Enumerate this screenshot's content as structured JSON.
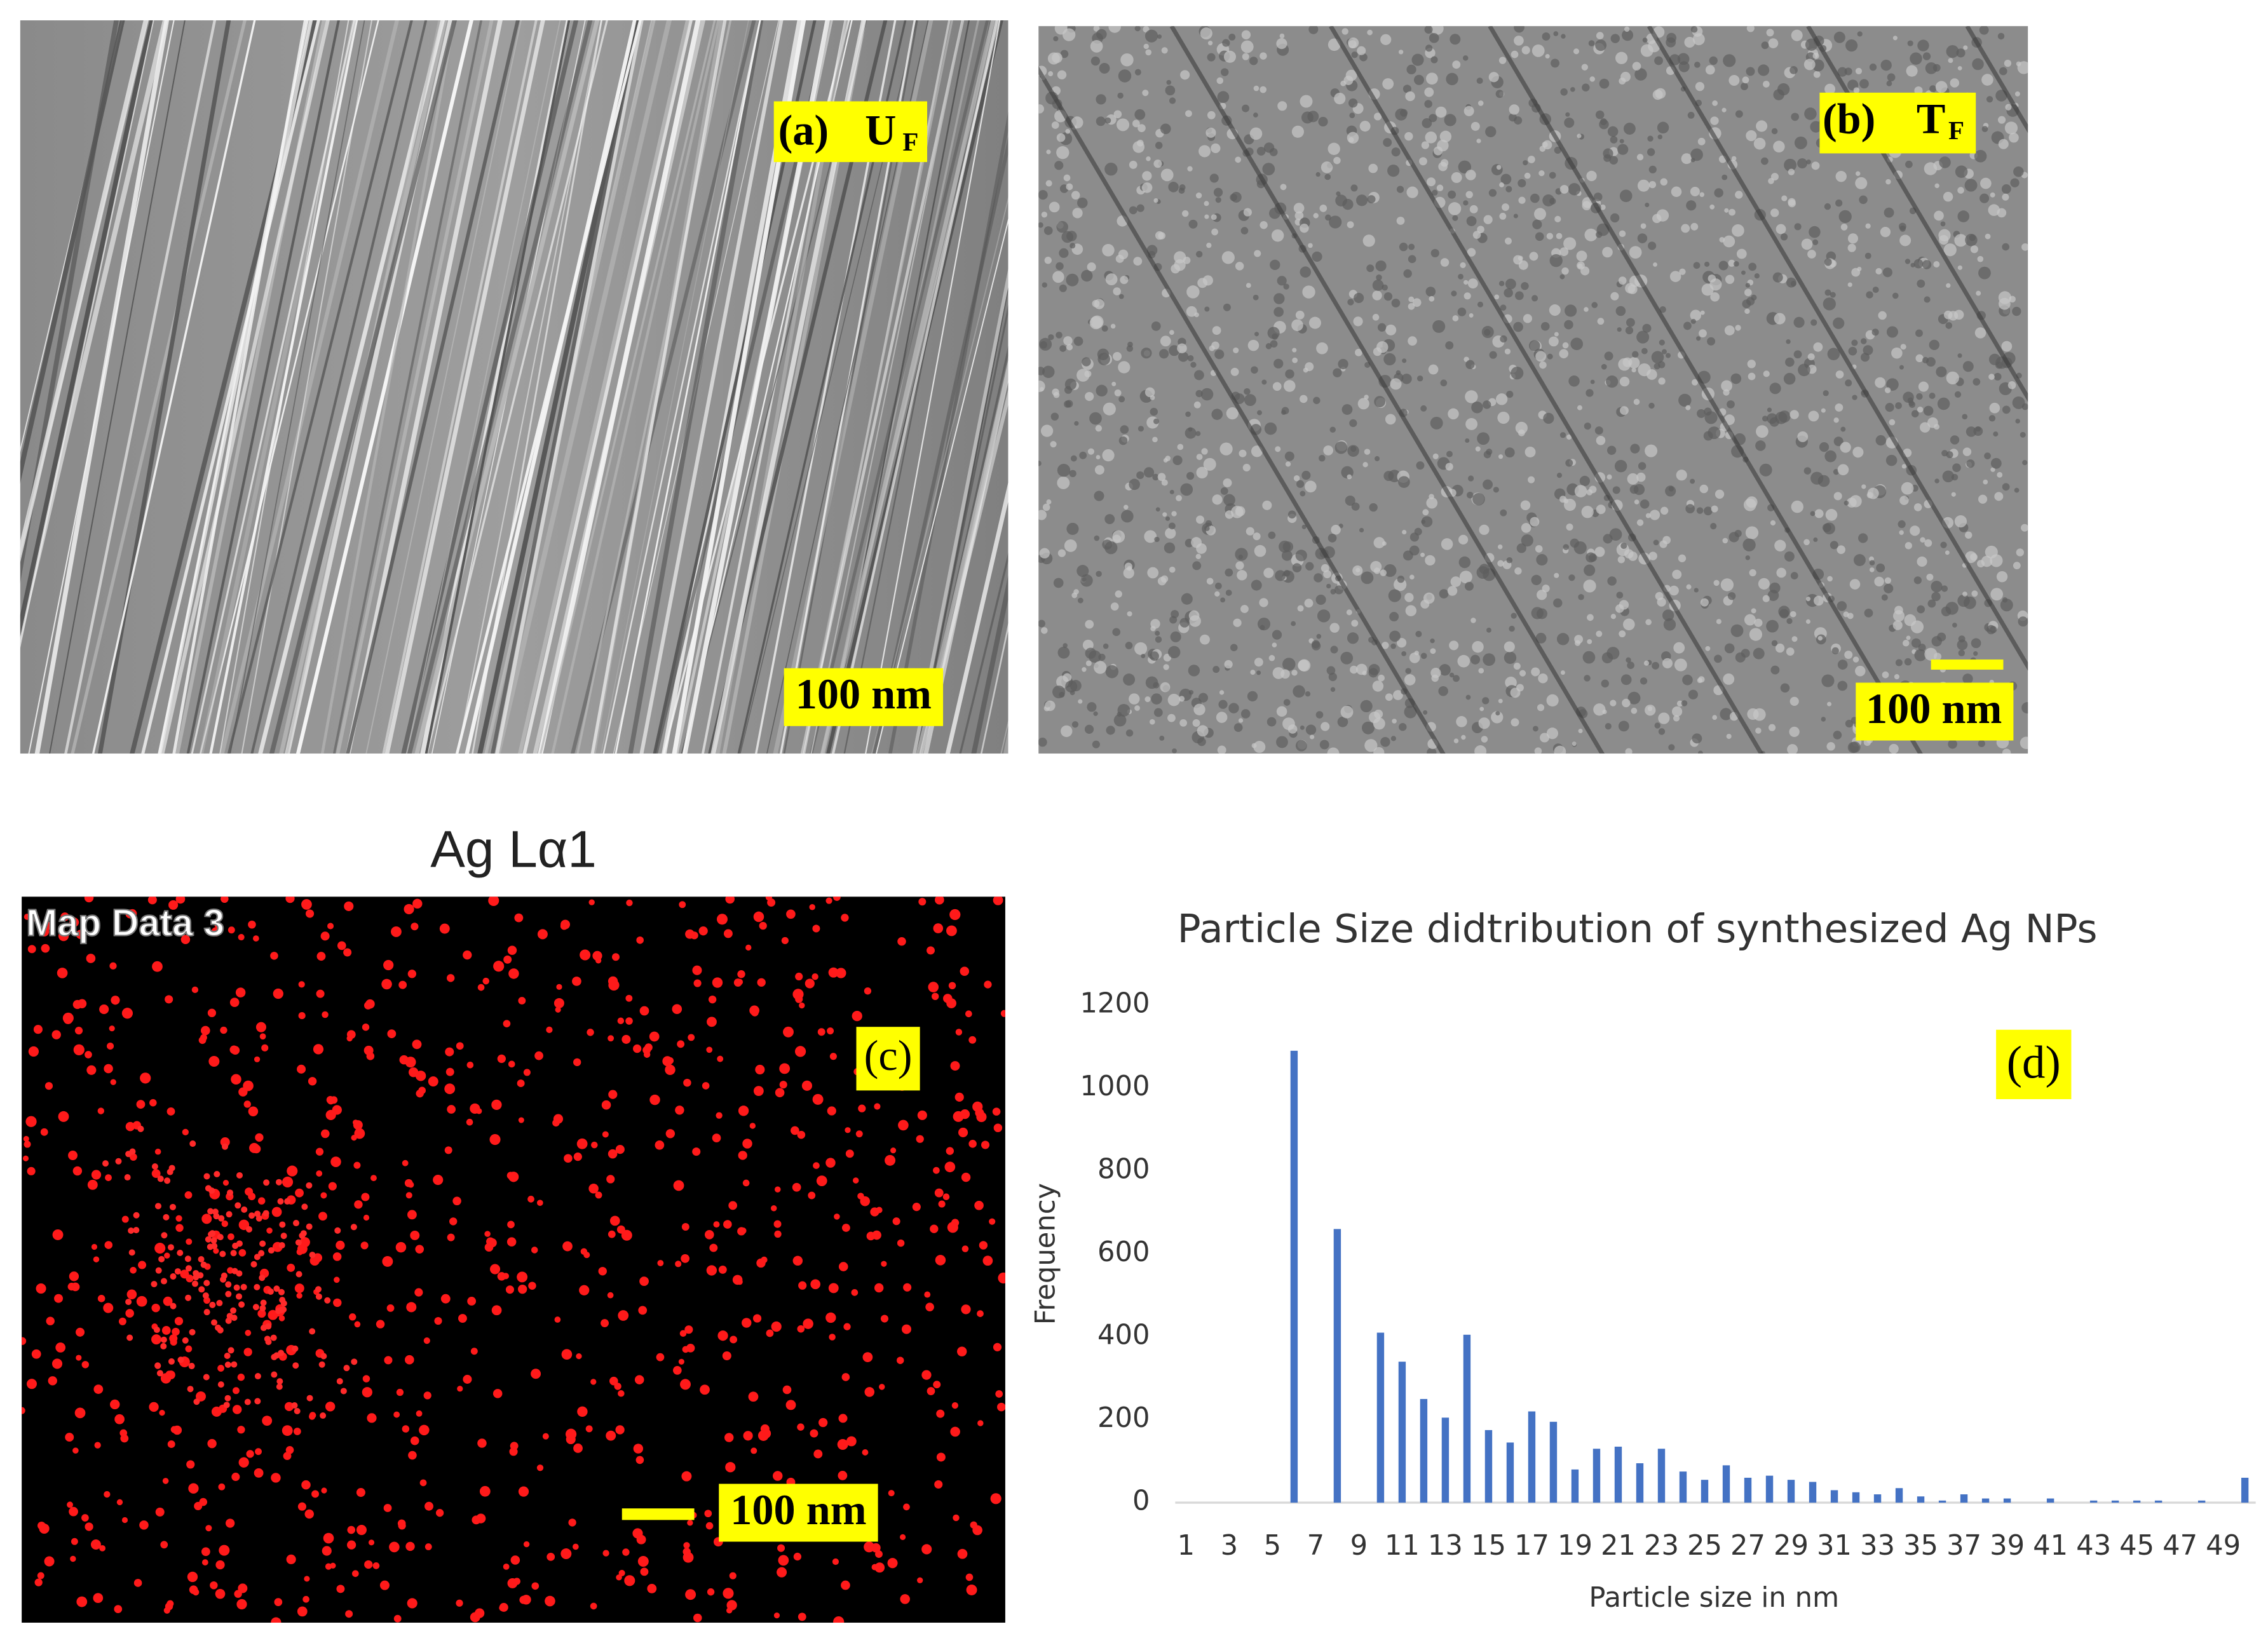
{
  "panels": {
    "a": {
      "label": "(a)",
      "symbol": "U",
      "subscript": "F",
      "scale_bar": "100 nm"
    },
    "b": {
      "label": "(b)",
      "symbol": "T",
      "subscript": "F",
      "scale_bar": "100 nm"
    },
    "c": {
      "title": "Ag Lα1",
      "map_label": "Map Data 3",
      "label": "(c)",
      "scale_bar": "100 nm"
    },
    "d": {
      "label": "(d)"
    }
  },
  "chart_data": {
    "type": "bar",
    "title": "Particle Size didtribution of synthesized Ag NPs",
    "x_label": "Particle size in nm",
    "y_label": "Frequency",
    "categories": [
      "1",
      null,
      "3",
      null,
      "5",
      null,
      "7",
      null,
      "9",
      null,
      "11",
      null,
      "13",
      null,
      "15",
      null,
      "17",
      null,
      "19",
      null,
      "21",
      null,
      "23",
      null,
      "25",
      null,
      "27",
      null,
      "29",
      null,
      "31",
      null,
      "33",
      null,
      "35",
      null,
      "37",
      null,
      "39",
      null,
      "41",
      null,
      "43",
      null,
      "45",
      null,
      "47",
      null,
      "49",
      null
    ],
    "values": [
      0,
      0,
      0,
      0,
      0,
      1090,
      0,
      660,
      0,
      410,
      340,
      250,
      205,
      405,
      175,
      145,
      220,
      195,
      80,
      130,
      135,
      95,
      130,
      75,
      55,
      90,
      60,
      65,
      55,
      50,
      30,
      25,
      20,
      35,
      15,
      5,
      20,
      10,
      10,
      0,
      10,
      0,
      5,
      5,
      5,
      5,
      0,
      5,
      0,
      60
    ],
    "color": "#4472c4",
    "ylim": [
      0,
      1200
    ],
    "yticks": [
      0,
      200,
      400,
      600,
      800,
      1000,
      1200
    ],
    "grid": false
  }
}
